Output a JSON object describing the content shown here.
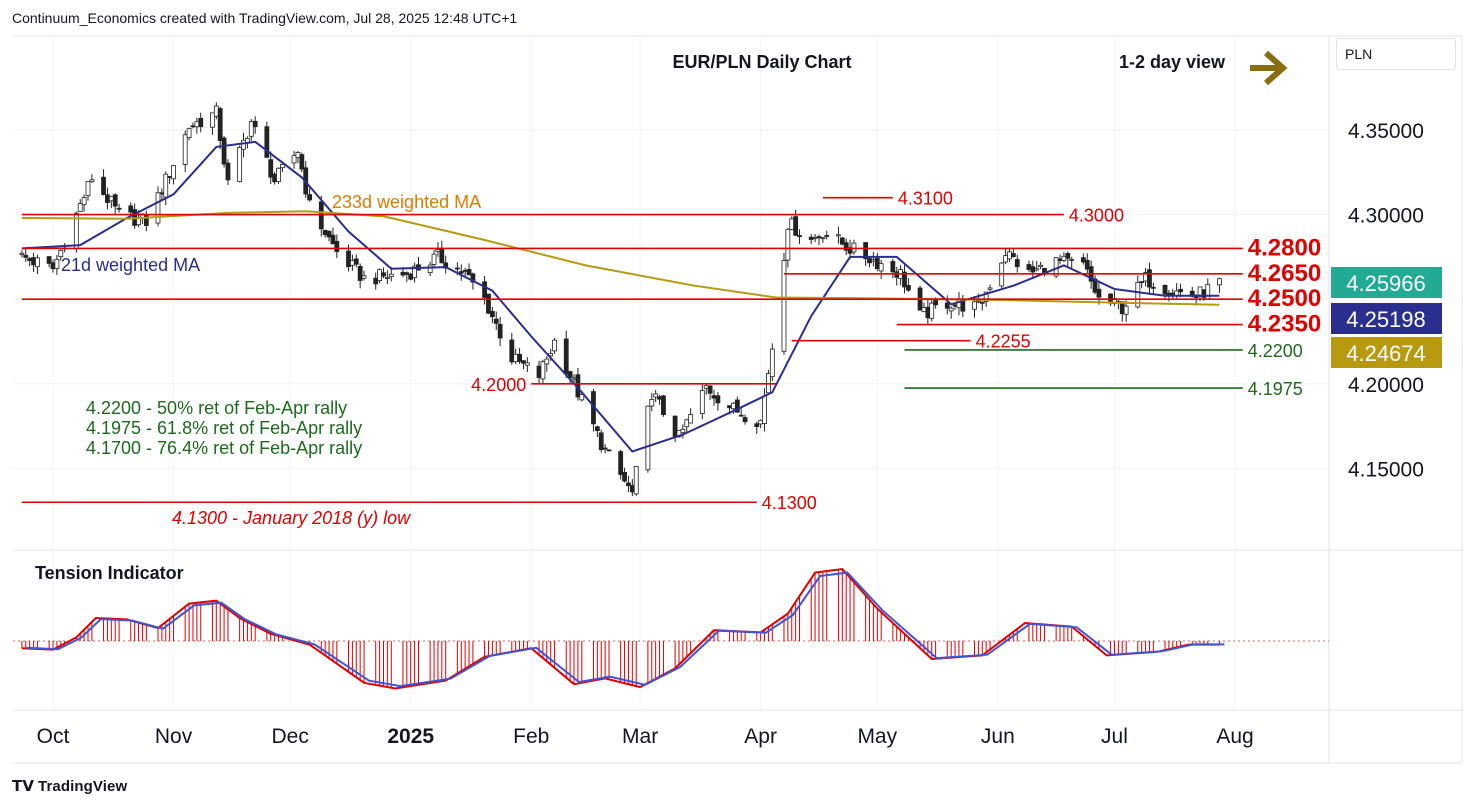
{
  "attribution": "Continuum_Economics created with TradingView.com, Jul 28, 2025 12:48 UTC+1",
  "footer_brand": "TradingView",
  "currency_label": "PLN",
  "chart_data": [
    {
      "type": "candlestick",
      "title": "EUR/PLN Daily Chart",
      "view_label": "1-2 day view",
      "view_arrow_icon": "right-arrow-icon",
      "ylim": [
        4.12,
        4.385
      ],
      "y_ticks": [
        "4.35000",
        "4.30000",
        "4.20000",
        "4.15000"
      ],
      "x_ticks": [
        {
          "label": "Oct",
          "date": "2024-10-01"
        },
        {
          "label": "Nov",
          "date": "2024-11-01"
        },
        {
          "label": "Dec",
          "date": "2024-12-01"
        },
        {
          "label": "2025",
          "date": "2025-01-01",
          "bold": true
        },
        {
          "label": "Feb",
          "date": "2025-02-01"
        },
        {
          "label": "Mar",
          "date": "2025-03-01"
        },
        {
          "label": "Apr",
          "date": "2025-04-01"
        },
        {
          "label": "May",
          "date": "2025-05-01"
        },
        {
          "label": "Jun",
          "date": "2025-06-01"
        },
        {
          "label": "Jul",
          "date": "2025-07-01"
        },
        {
          "label": "Aug",
          "date": "2025-08-01"
        }
      ],
      "series": [
        {
          "name": "EUR/PLN",
          "approx_close_path": [
            {
              "date": "2024-09-23",
              "value": 4.275
            },
            {
              "date": "2024-10-01",
              "value": 4.268
            },
            {
              "date": "2024-10-07",
              "value": 4.3
            },
            {
              "date": "2024-10-11",
              "value": 4.322
            },
            {
              "date": "2024-10-18",
              "value": 4.3
            },
            {
              "date": "2024-10-25",
              "value": 4.296
            },
            {
              "date": "2024-10-31",
              "value": 4.325
            },
            {
              "date": "2024-11-05",
              "value": 4.352
            },
            {
              "date": "2024-11-12",
              "value": 4.36
            },
            {
              "date": "2024-11-15",
              "value": 4.318
            },
            {
              "date": "2024-11-21",
              "value": 4.355
            },
            {
              "date": "2024-11-27",
              "value": 4.32
            },
            {
              "date": "2024-12-03",
              "value": 4.338
            },
            {
              "date": "2024-12-06",
              "value": 4.305
            },
            {
              "date": "2024-12-13",
              "value": 4.278
            },
            {
              "date": "2024-12-20",
              "value": 4.262
            },
            {
              "date": "2024-12-31",
              "value": 4.265
            },
            {
              "date": "2025-01-08",
              "value": 4.275
            },
            {
              "date": "2025-01-15",
              "value": 4.265
            },
            {
              "date": "2025-01-20",
              "value": 4.25
            },
            {
              "date": "2025-01-27",
              "value": 4.215
            },
            {
              "date": "2025-02-03",
              "value": 4.205
            },
            {
              "date": "2025-02-07",
              "value": 4.225
            },
            {
              "date": "2025-02-14",
              "value": 4.19
            },
            {
              "date": "2025-02-20",
              "value": 4.16
            },
            {
              "date": "2025-02-27",
              "value": 4.135
            },
            {
              "date": "2025-03-04",
              "value": 4.195
            },
            {
              "date": "2025-03-11",
              "value": 4.168
            },
            {
              "date": "2025-03-18",
              "value": 4.198
            },
            {
              "date": "2025-03-25",
              "value": 4.185
            },
            {
              "date": "2025-04-01",
              "value": 4.178
            },
            {
              "date": "2025-04-04",
              "value": 4.222
            },
            {
              "date": "2025-04-08",
              "value": 4.295
            },
            {
              "date": "2025-04-14",
              "value": 4.285
            },
            {
              "date": "2025-04-17",
              "value": 4.29
            },
            {
              "date": "2025-04-24",
              "value": 4.28
            },
            {
              "date": "2025-05-01",
              "value": 4.272
            },
            {
              "date": "2025-05-07",
              "value": 4.265
            },
            {
              "date": "2025-05-12",
              "value": 4.24
            },
            {
              "date": "2025-05-19",
              "value": 4.248
            },
            {
              "date": "2025-05-27",
              "value": 4.245
            },
            {
              "date": "2025-06-03",
              "value": 4.278
            },
            {
              "date": "2025-06-09",
              "value": 4.265
            },
            {
              "date": "2025-06-16",
              "value": 4.272
            },
            {
              "date": "2025-06-23",
              "value": 4.27
            },
            {
              "date": "2025-06-27",
              "value": 4.25
            },
            {
              "date": "2025-07-03",
              "value": 4.245
            },
            {
              "date": "2025-07-09",
              "value": 4.262
            },
            {
              "date": "2025-07-16",
              "value": 4.255
            },
            {
              "date": "2025-07-22",
              "value": 4.252
            },
            {
              "date": "2025-07-28",
              "value": 4.2597
            }
          ]
        },
        {
          "name": "21d weighted MA",
          "color": "#2a2e8f",
          "points": [
            {
              "date": "2024-09-23",
              "value": 4.28
            },
            {
              "date": "2024-10-08",
              "value": 4.282
            },
            {
              "date": "2024-10-20",
              "value": 4.298
            },
            {
              "date": "2024-11-01",
              "value": 4.312
            },
            {
              "date": "2024-11-12",
              "value": 4.34
            },
            {
              "date": "2024-11-22",
              "value": 4.343
            },
            {
              "date": "2024-12-04",
              "value": 4.322
            },
            {
              "date": "2024-12-16",
              "value": 4.29
            },
            {
              "date": "2024-12-27",
              "value": 4.268
            },
            {
              "date": "2025-01-10",
              "value": 4.269
            },
            {
              "date": "2025-01-22",
              "value": 4.255
            },
            {
              "date": "2025-02-01",
              "value": 4.228
            },
            {
              "date": "2025-02-14",
              "value": 4.195
            },
            {
              "date": "2025-02-27",
              "value": 4.16
            },
            {
              "date": "2025-03-12",
              "value": 4.17
            },
            {
              "date": "2025-03-26",
              "value": 4.185
            },
            {
              "date": "2025-04-04",
              "value": 4.195
            },
            {
              "date": "2025-04-14",
              "value": 4.24
            },
            {
              "date": "2025-04-24",
              "value": 4.275
            },
            {
              "date": "2025-05-06",
              "value": 4.275
            },
            {
              "date": "2025-05-20",
              "value": 4.247
            },
            {
              "date": "2025-06-05",
              "value": 4.258
            },
            {
              "date": "2025-06-18",
              "value": 4.27
            },
            {
              "date": "2025-07-01",
              "value": 4.256
            },
            {
              "date": "2025-07-14",
              "value": 4.252
            },
            {
              "date": "2025-07-28",
              "value": 4.252
            }
          ]
        },
        {
          "name": "233d weighted MA",
          "color": "#b89a10",
          "points": [
            {
              "date": "2024-09-23",
              "value": 4.298
            },
            {
              "date": "2024-10-20",
              "value": 4.2975
            },
            {
              "date": "2024-11-15",
              "value": 4.301
            },
            {
              "date": "2024-12-05",
              "value": 4.302
            },
            {
              "date": "2024-12-25",
              "value": 4.299
            },
            {
              "date": "2025-01-20",
              "value": 4.285
            },
            {
              "date": "2025-02-15",
              "value": 4.27
            },
            {
              "date": "2025-03-15",
              "value": 4.258
            },
            {
              "date": "2025-04-05",
              "value": 4.251
            },
            {
              "date": "2025-05-01",
              "value": 4.2505
            },
            {
              "date": "2025-06-01",
              "value": 4.2495
            },
            {
              "date": "2025-07-01",
              "value": 4.248
            },
            {
              "date": "2025-07-28",
              "value": 4.2467
            }
          ]
        }
      ],
      "price_labels": [
        {
          "text": "4.25966",
          "value": 4.25966,
          "color": "#22ab94",
          "series": "EUR/PLN"
        },
        {
          "text": "4.25198",
          "value": 4.25198,
          "color": "#2a2e8f",
          "series": "21d weighted MA"
        },
        {
          "text": "4.24674",
          "value": 4.24674,
          "color": "#b89a10",
          "series": "233d weighted MA"
        }
      ],
      "levels": [
        {
          "value": 4.31,
          "label": "4.3100",
          "color": "#e00000",
          "start": "2025-04-17",
          "end": "2025-05-05"
        },
        {
          "value": 4.3,
          "label": "4.3000",
          "color": "#e00000",
          "start": "2024-09-23",
          "end": "2025-06-18"
        },
        {
          "value": 4.28,
          "label": "4.2800",
          "color": "#e00000",
          "start": "2024-09-23",
          "end": "2025-08-03",
          "bold": true
        },
        {
          "value": 4.265,
          "label": "4.2650",
          "color": "#e00000",
          "start": "2025-04-07",
          "end": "2025-08-03",
          "bold": true
        },
        {
          "value": 4.25,
          "label": "4.2500",
          "color": "#e00000",
          "start": "2024-09-23",
          "end": "2025-08-03",
          "bold": true
        },
        {
          "value": 4.235,
          "label": "4.2350",
          "color": "#e00000",
          "start": "2025-05-06",
          "end": "2025-08-03",
          "bold": true
        },
        {
          "value": 4.2255,
          "label": "4.2255",
          "color": "#e00000",
          "start": "2025-04-09",
          "end": "2025-05-25"
        },
        {
          "value": 4.22,
          "label": "4.2200",
          "color": "#1e6b1e",
          "start": "2025-05-08",
          "end": "2025-08-03"
        },
        {
          "value": 4.2,
          "label": "4.2000",
          "color": "#e00000",
          "start": "2025-02-01",
          "end": "2025-04-05",
          "label_side": "left"
        },
        {
          "value": 4.1975,
          "label": "4.1975",
          "color": "#1e6b1e",
          "start": "2025-05-08",
          "end": "2025-08-03"
        },
        {
          "value": 4.13,
          "label": "4.1300",
          "color": "#e00000",
          "start": "2024-09-23",
          "end": "2025-03-31"
        }
      ],
      "annotations": [
        {
          "text": "233d weighted MA",
          "color": "#e07b00"
        },
        {
          "text": "21d weighted MA",
          "color": "#2a2e8f"
        },
        {
          "text": "4.2200 - 50% ret of Feb-Apr rally",
          "color": "#1e6b1e"
        },
        {
          "text": "4.1975 - 61.8% ret of Feb-Apr rally",
          "color": "#1e6b1e"
        },
        {
          "text": "4.1700 - 76.4% ret of Feb-Apr rally",
          "color": "#1e6b1e"
        },
        {
          "text": "4.1300 - January 2018 (y) low",
          "color": "#e00000",
          "italic": true
        }
      ]
    },
    {
      "type": "area",
      "title": "Tension Indicator",
      "colors": {
        "signal": "#e00000",
        "smooth": "#3f55d6"
      },
      "series": [
        {
          "name": "Tension",
          "points": [
            {
              "date": "2024-09-23",
              "value": -0.1
            },
            {
              "date": "2024-10-01",
              "value": -0.12
            },
            {
              "date": "2024-10-07",
              "value": 0.05
            },
            {
              "date": "2024-10-12",
              "value": 0.32
            },
            {
              "date": "2024-10-20",
              "value": 0.3
            },
            {
              "date": "2024-10-28",
              "value": 0.18
            },
            {
              "date": "2024-11-05",
              "value": 0.52
            },
            {
              "date": "2024-11-12",
              "value": 0.56
            },
            {
              "date": "2024-11-18",
              "value": 0.32
            },
            {
              "date": "2024-11-26",
              "value": 0.1
            },
            {
              "date": "2024-12-06",
              "value": -0.05
            },
            {
              "date": "2024-12-20",
              "value": -0.58
            },
            {
              "date": "2024-12-28",
              "value": -0.66
            },
            {
              "date": "2025-01-10",
              "value": -0.55
            },
            {
              "date": "2025-01-20",
              "value": -0.22
            },
            {
              "date": "2025-02-01",
              "value": -0.1
            },
            {
              "date": "2025-02-12",
              "value": -0.6
            },
            {
              "date": "2025-02-20",
              "value": -0.52
            },
            {
              "date": "2025-03-01",
              "value": -0.64
            },
            {
              "date": "2025-03-10",
              "value": -0.38
            },
            {
              "date": "2025-03-20",
              "value": 0.15
            },
            {
              "date": "2025-04-01",
              "value": 0.12
            },
            {
              "date": "2025-04-08",
              "value": 0.38
            },
            {
              "date": "2025-04-15",
              "value": 0.95
            },
            {
              "date": "2025-04-22",
              "value": 1.0
            },
            {
              "date": "2025-05-01",
              "value": 0.45
            },
            {
              "date": "2025-05-15",
              "value": -0.25
            },
            {
              "date": "2025-05-28",
              "value": -0.2
            },
            {
              "date": "2025-06-08",
              "value": 0.25
            },
            {
              "date": "2025-06-20",
              "value": 0.2
            },
            {
              "date": "2025-06-29",
              "value": -0.2
            },
            {
              "date": "2025-07-12",
              "value": -0.15
            },
            {
              "date": "2025-07-20",
              "value": -0.05
            },
            {
              "date": "2025-07-28",
              "value": -0.05
            }
          ]
        }
      ]
    }
  ]
}
